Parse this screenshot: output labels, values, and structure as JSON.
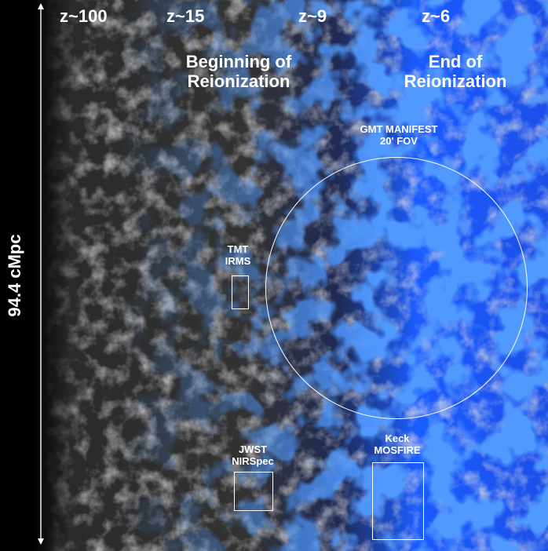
{
  "redshift_labels": [
    "z~100",
    "z~15",
    "z~9",
    "z~6"
  ],
  "regions": {
    "beginning": "Beginning of Reionization",
    "end": "End of Reionization"
  },
  "instruments": {
    "gmt": {
      "name": "GMT MANIFEST",
      "fov": "20' FOV"
    },
    "tmt": {
      "name": "TMT",
      "sub": "IRMS"
    },
    "jwst": {
      "name": "JWST",
      "sub": "NIRSpec"
    },
    "keck": {
      "name": "Keck",
      "sub": "MOSFIRE"
    }
  },
  "scale_bar": {
    "label": "94.4 cMpc"
  },
  "colors": {
    "neutral_web": "#8a8a8a",
    "ionized": "#1e5cff",
    "background": "#000000"
  }
}
